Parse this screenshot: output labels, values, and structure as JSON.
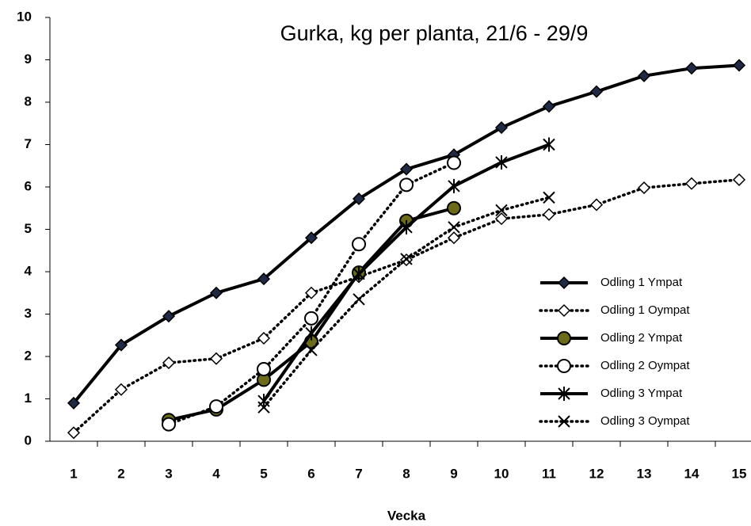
{
  "chart_data": {
    "type": "line",
    "title": "Gurka, kg per planta, 21/6 - 29/9",
    "x_label": "Vecka",
    "categories": [
      "1",
      "2",
      "3",
      "4",
      "5",
      "6",
      "7",
      "8",
      "9",
      "10",
      "11",
      "12",
      "13",
      "14",
      "15"
    ],
    "ylim": [
      0,
      10
    ],
    "yticks": [
      0,
      1,
      2,
      3,
      4,
      5,
      6,
      7,
      8,
      9,
      10
    ],
    "grid": false,
    "legend": "right",
    "series": [
      {
        "name": "Odling 1 Ympat",
        "color": "#000000",
        "line_style": "solid",
        "marker": "diamond-filled",
        "values": [
          0.9,
          2.27,
          2.95,
          3.5,
          3.83,
          4.8,
          5.72,
          6.42,
          6.76,
          7.4,
          7.9,
          8.25,
          8.62,
          8.8,
          8.87
        ]
      },
      {
        "name": "Odling 1 Oympat",
        "color": "#000000",
        "line_style": "dotted",
        "marker": "diamond-open",
        "values": [
          0.2,
          1.22,
          1.85,
          1.95,
          2.43,
          3.5,
          3.88,
          4.28,
          4.8,
          5.25,
          5.35,
          5.58,
          5.98,
          6.08,
          6.17
        ]
      },
      {
        "name": "Odling 2 Ympat",
        "color": "#000000",
        "line_style": "solid",
        "marker": "circle-filled",
        "values": [
          null,
          null,
          0.5,
          0.75,
          1.45,
          2.35,
          3.98,
          5.2,
          5.5,
          null,
          null,
          null,
          null,
          null,
          null
        ]
      },
      {
        "name": "Odling 2 Oympat",
        "color": "#000000",
        "line_style": "dotted",
        "marker": "circle-open",
        "values": [
          null,
          null,
          0.4,
          0.82,
          1.7,
          2.9,
          4.65,
          6.05,
          6.57,
          null,
          null,
          null,
          null,
          null,
          null
        ]
      },
      {
        "name": "Odling 3 Ympat",
        "color": "#000000",
        "line_style": "solid",
        "marker": "star",
        "values": [
          null,
          null,
          null,
          null,
          0.95,
          2.55,
          3.95,
          5.05,
          6.02,
          6.58,
          7.0,
          null,
          null,
          null,
          null
        ]
      },
      {
        "name": "Odling 3 Oympat",
        "color": "#000000",
        "line_style": "dotted",
        "marker": "cross",
        "values": [
          null,
          null,
          null,
          null,
          0.8,
          2.15,
          3.35,
          4.3,
          5.05,
          5.45,
          5.75,
          null,
          null,
          null,
          null
        ]
      }
    ]
  }
}
